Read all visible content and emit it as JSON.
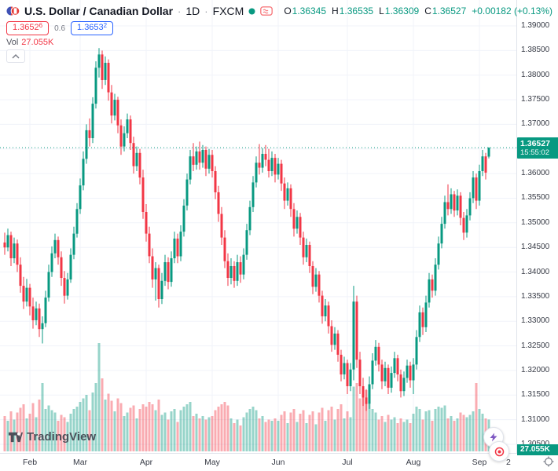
{
  "header": {
    "title": "U.S. Dollar / Canadian Dollar",
    "sep": "·",
    "timeframe": "1D",
    "exchange": "FXCM",
    "ohlc": {
      "o_label": "O",
      "o_value": "1.36345",
      "h_label": "H",
      "h_value": "1.36535",
      "l_label": "L",
      "l_value": "1.36309",
      "c_label": "C",
      "c_value": "1.36527",
      "change": "+0.00182 (+0.13%)"
    },
    "bid_main": "1.3652",
    "bid_sup": "6",
    "spread": "0.6",
    "ask_main": "1.3653",
    "ask_sup": "2",
    "vol_label": "Vol",
    "vol_value": "27.055K"
  },
  "price_scale": {
    "labels": [
      "1.39000",
      "1.38500",
      "1.38000",
      "1.37500",
      "1.37000",
      "1.36500",
      "1.36000",
      "1.35500",
      "1.35000",
      "1.34500",
      "1.34000",
      "1.33500",
      "1.33000",
      "1.32500",
      "1.32000",
      "1.31500",
      "1.31000",
      "1.30500"
    ],
    "current_price_label": "1.36527",
    "countdown": "15:55:02",
    "volume_label": "27.055K"
  },
  "time_scale": {
    "partial_label": "2"
  },
  "logo": {
    "text": "TradingView"
  },
  "colors": {
    "up": "#089981",
    "down": "#f23645",
    "accent_blue": "#2962ff",
    "grid": "#f0f3fa",
    "border": "#e0e3eb",
    "axis_text": "#363a45",
    "boost_purple": "#7e57c2"
  },
  "chart_data": {
    "type": "candlestick",
    "title": "U.S. Dollar / Canadian Dollar · 1D · FXCM",
    "ylabel": "",
    "xlabel": "",
    "ylim": [
      1.305,
      1.39
    ],
    "grid_step": 0.005,
    "current_price": 1.36527,
    "current_volume_k": 27.055,
    "month_ticks": [
      {
        "label": "Feb",
        "index": 8
      },
      {
        "label": "Mar",
        "index": 24
      },
      {
        "label": "Apr",
        "index": 45
      },
      {
        "label": "May",
        "index": 66
      },
      {
        "label": "Jun",
        "index": 87
      },
      {
        "label": "Jul",
        "index": 109
      },
      {
        "label": "Aug",
        "index": 130
      },
      {
        "label": "Sep",
        "index": 151
      }
    ],
    "candles": [
      [
        1.346,
        1.348,
        1.3435,
        1.345,
        30
      ],
      [
        1.345,
        1.3488,
        1.3442,
        1.3475,
        26
      ],
      [
        1.3475,
        1.3482,
        1.3412,
        1.3428,
        34
      ],
      [
        1.3428,
        1.347,
        1.3418,
        1.3458,
        27
      ],
      [
        1.3458,
        1.3466,
        1.34,
        1.3415,
        33
      ],
      [
        1.3415,
        1.343,
        1.3358,
        1.3372,
        37
      ],
      [
        1.3372,
        1.339,
        1.3325,
        1.334,
        40
      ],
      [
        1.334,
        1.3386,
        1.333,
        1.3368,
        28
      ],
      [
        1.3368,
        1.3376,
        1.3312,
        1.333,
        32
      ],
      [
        1.333,
        1.3348,
        1.3285,
        1.3302,
        41
      ],
      [
        1.3302,
        1.334,
        1.3292,
        1.3326,
        29
      ],
      [
        1.3326,
        1.3336,
        1.3268,
        1.3284,
        44
      ],
      [
        1.3284,
        1.331,
        1.3255,
        1.3296,
        58
      ],
      [
        1.3296,
        1.3362,
        1.3288,
        1.3348,
        36
      ],
      [
        1.3348,
        1.3415,
        1.334,
        1.34,
        39
      ],
      [
        1.34,
        1.3452,
        1.339,
        1.3438,
        35
      ],
      [
        1.3438,
        1.3478,
        1.3428,
        1.3465,
        33
      ],
      [
        1.3465,
        1.3472,
        1.3415,
        1.343,
        26
      ],
      [
        1.343,
        1.3442,
        1.3372,
        1.3388,
        31
      ],
      [
        1.3388,
        1.3402,
        1.3336,
        1.3352,
        29
      ],
      [
        1.3352,
        1.3398,
        1.3344,
        1.3385,
        25
      ],
      [
        1.3385,
        1.3448,
        1.3378,
        1.3435,
        32
      ],
      [
        1.3435,
        1.3492,
        1.3426,
        1.3478,
        36
      ],
      [
        1.3478,
        1.354,
        1.347,
        1.3528,
        38
      ],
      [
        1.3528,
        1.359,
        1.3518,
        1.3576,
        42
      ],
      [
        1.3576,
        1.3645,
        1.3566,
        1.363,
        45
      ],
      [
        1.363,
        1.37,
        1.362,
        1.3688,
        48
      ],
      [
        1.3688,
        1.3712,
        1.3655,
        1.3672,
        35
      ],
      [
        1.3672,
        1.3755,
        1.3662,
        1.3742,
        50
      ],
      [
        1.3742,
        1.3828,
        1.3732,
        1.3815,
        58
      ],
      [
        1.3815,
        1.3855,
        1.3795,
        1.3842,
        92
      ],
      [
        1.3842,
        1.385,
        1.3772,
        1.379,
        62
      ],
      [
        1.379,
        1.3838,
        1.378,
        1.3825,
        44
      ],
      [
        1.3825,
        1.3832,
        1.3748,
        1.3765,
        49
      ],
      [
        1.3765,
        1.378,
        1.3702,
        1.3718,
        43
      ],
      [
        1.3718,
        1.3762,
        1.3708,
        1.375,
        34
      ],
      [
        1.375,
        1.3756,
        1.3682,
        1.3698,
        45
      ],
      [
        1.3698,
        1.371,
        1.3638,
        1.3655,
        41
      ],
      [
        1.3655,
        1.3696,
        1.3645,
        1.3682,
        30
      ],
      [
        1.3682,
        1.3722,
        1.3672,
        1.371,
        33
      ],
      [
        1.371,
        1.3718,
        1.3648,
        1.3662,
        37
      ],
      [
        1.3662,
        1.3675,
        1.36,
        1.3615,
        39
      ],
      [
        1.3615,
        1.3655,
        1.3605,
        1.3642,
        28
      ],
      [
        1.3642,
        1.365,
        1.3578,
        1.3592,
        36
      ],
      [
        1.3592,
        1.3608,
        1.3508,
        1.3522,
        40
      ],
      [
        1.3522,
        1.3538,
        1.3462,
        1.3478,
        38
      ],
      [
        1.3478,
        1.3492,
        1.3418,
        1.3432,
        42
      ],
      [
        1.3432,
        1.3448,
        1.3368,
        1.3385,
        40
      ],
      [
        1.3385,
        1.342,
        1.3342,
        1.3408,
        35
      ],
      [
        1.3408,
        1.3415,
        1.3328,
        1.3345,
        44
      ],
      [
        1.3345,
        1.3398,
        1.3335,
        1.3382,
        31
      ],
      [
        1.3382,
        1.3435,
        1.3372,
        1.342,
        33
      ],
      [
        1.342,
        1.343,
        1.3365,
        1.338,
        27
      ],
      [
        1.338,
        1.3442,
        1.337,
        1.3428,
        34
      ],
      [
        1.3428,
        1.3482,
        1.3418,
        1.3468,
        36
      ],
      [
        1.3468,
        1.3478,
        1.3418,
        1.3432,
        25
      ],
      [
        1.3432,
        1.3495,
        1.3422,
        1.3482,
        35
      ],
      [
        1.3482,
        1.3548,
        1.3472,
        1.3535,
        38
      ],
      [
        1.3535,
        1.36,
        1.3525,
        1.3588,
        40
      ],
      [
        1.3588,
        1.3648,
        1.3578,
        1.3635,
        42
      ],
      [
        1.3635,
        1.3662,
        1.3605,
        1.3618,
        30
      ],
      [
        1.3618,
        1.3655,
        1.3608,
        1.3645,
        32
      ],
      [
        1.3645,
        1.3665,
        1.3608,
        1.3622,
        28
      ],
      [
        1.3622,
        1.3658,
        1.3612,
        1.3648,
        30
      ],
      [
        1.3648,
        1.3655,
        1.3595,
        1.361,
        27
      ],
      [
        1.361,
        1.365,
        1.36,
        1.3638,
        29
      ],
      [
        1.3638,
        1.3648,
        1.3592,
        1.3605,
        30
      ],
      [
        1.3605,
        1.3615,
        1.3548,
        1.3562,
        35
      ],
      [
        1.3562,
        1.3575,
        1.3502,
        1.3518,
        38
      ],
      [
        1.3518,
        1.3532,
        1.3455,
        1.347,
        40
      ],
      [
        1.347,
        1.3485,
        1.3408,
        1.3422,
        42
      ],
      [
        1.3422,
        1.3438,
        1.3372,
        1.3388,
        39
      ],
      [
        1.3388,
        1.3428,
        1.3375,
        1.3412,
        28
      ],
      [
        1.3412,
        1.3422,
        1.3368,
        1.3382,
        24
      ],
      [
        1.3382,
        1.3435,
        1.3372,
        1.342,
        27
      ],
      [
        1.342,
        1.3432,
        1.3378,
        1.3395,
        22
      ],
      [
        1.3395,
        1.3448,
        1.3385,
        1.3435,
        29
      ],
      [
        1.3435,
        1.3498,
        1.3425,
        1.3485,
        33
      ],
      [
        1.3485,
        1.3545,
        1.3475,
        1.3532,
        36
      ],
      [
        1.3532,
        1.3595,
        1.3522,
        1.3582,
        38
      ],
      [
        1.3582,
        1.3635,
        1.3572,
        1.3622,
        35
      ],
      [
        1.3622,
        1.366,
        1.3598,
        1.3612,
        28
      ],
      [
        1.3612,
        1.3652,
        1.3602,
        1.364,
        30
      ],
      [
        1.364,
        1.3658,
        1.3615,
        1.3628,
        25
      ],
      [
        1.3628,
        1.365,
        1.3592,
        1.3605,
        27
      ],
      [
        1.3605,
        1.3645,
        1.3595,
        1.3632,
        26
      ],
      [
        1.3632,
        1.364,
        1.3582,
        1.3598,
        28
      ],
      [
        1.3598,
        1.3632,
        1.3588,
        1.362,
        26
      ],
      [
        1.362,
        1.3628,
        1.3565,
        1.358,
        31
      ],
      [
        1.358,
        1.3592,
        1.3528,
        1.3545,
        34
      ],
      [
        1.3545,
        1.3582,
        1.3535,
        1.357,
        24
      ],
      [
        1.357,
        1.3578,
        1.3512,
        1.3528,
        33
      ],
      [
        1.3528,
        1.354,
        1.3472,
        1.3488,
        36
      ],
      [
        1.3488,
        1.3525,
        1.3478,
        1.3512,
        25
      ],
      [
        1.3512,
        1.352,
        1.3455,
        1.347,
        32
      ],
      [
        1.347,
        1.3482,
        1.3415,
        1.343,
        35
      ],
      [
        1.343,
        1.3468,
        1.342,
        1.3455,
        24
      ],
      [
        1.3455,
        1.3462,
        1.3398,
        1.3412,
        31
      ],
      [
        1.3412,
        1.3422,
        1.3355,
        1.337,
        34
      ],
      [
        1.337,
        1.3408,
        1.336,
        1.3395,
        23
      ],
      [
        1.3395,
        1.3402,
        1.3338,
        1.3352,
        33
      ],
      [
        1.3352,
        1.3362,
        1.3295,
        1.331,
        37
      ],
      [
        1.331,
        1.3345,
        1.33,
        1.3332,
        26
      ],
      [
        1.3332,
        1.334,
        1.3275,
        1.329,
        35
      ],
      [
        1.329,
        1.3302,
        1.3238,
        1.3252,
        38
      ],
      [
        1.3252,
        1.3288,
        1.3242,
        1.3275,
        27
      ],
      [
        1.3275,
        1.3282,
        1.3218,
        1.3232,
        36
      ],
      [
        1.3232,
        1.3242,
        1.3178,
        1.3192,
        40
      ],
      [
        1.3192,
        1.3228,
        1.3182,
        1.3215,
        28
      ],
      [
        1.3215,
        1.3222,
        1.3152,
        1.3168,
        34
      ],
      [
        1.3168,
        1.3215,
        1.3158,
        1.3202,
        29
      ],
      [
        1.3202,
        1.3372,
        1.318,
        1.334,
        55
      ],
      [
        1.334,
        1.3352,
        1.3205,
        1.3222,
        58
      ],
      [
        1.3222,
        1.3238,
        1.3152,
        1.3168,
        45
      ],
      [
        1.3168,
        1.3185,
        1.3128,
        1.3145,
        49
      ],
      [
        1.3145,
        1.3162,
        1.3118,
        1.3132,
        52
      ],
      [
        1.3132,
        1.3188,
        1.3122,
        1.3172,
        40
      ],
      [
        1.3172,
        1.3235,
        1.3162,
        1.322,
        36
      ],
      [
        1.322,
        1.3262,
        1.321,
        1.3248,
        33
      ],
      [
        1.3248,
        1.3256,
        1.3198,
        1.3212,
        27
      ],
      [
        1.3212,
        1.3222,
        1.3162,
        1.3178,
        30
      ],
      [
        1.3178,
        1.3218,
        1.3168,
        1.3205,
        25
      ],
      [
        1.3205,
        1.3212,
        1.3152,
        1.3165,
        31
      ],
      [
        1.3165,
        1.3208,
        1.3155,
        1.3195,
        27
      ],
      [
        1.3195,
        1.3238,
        1.3185,
        1.3225,
        29
      ],
      [
        1.3225,
        1.3232,
        1.3178,
        1.3192,
        24
      ],
      [
        1.3192,
        1.3202,
        1.3145,
        1.3158,
        28
      ],
      [
        1.3158,
        1.3198,
        1.3148,
        1.3185,
        25
      ],
      [
        1.3185,
        1.3222,
        1.3175,
        1.321,
        27
      ],
      [
        1.321,
        1.3218,
        1.3165,
        1.318,
        24
      ],
      [
        1.318,
        1.3225,
        1.3152,
        1.3212,
        32
      ],
      [
        1.3212,
        1.3282,
        1.3202,
        1.3268,
        38
      ],
      [
        1.3268,
        1.3332,
        1.3258,
        1.3318,
        36
      ],
      [
        1.3318,
        1.3328,
        1.3272,
        1.3288,
        27
      ],
      [
        1.3288,
        1.3352,
        1.3278,
        1.3338,
        34
      ],
      [
        1.3338,
        1.3398,
        1.3328,
        1.3385,
        35
      ],
      [
        1.3385,
        1.3395,
        1.3348,
        1.3362,
        26
      ],
      [
        1.3362,
        1.3428,
        1.3352,
        1.3415,
        36
      ],
      [
        1.3415,
        1.3472,
        1.3405,
        1.3458,
        38
      ],
      [
        1.3458,
        1.3512,
        1.3448,
        1.3498,
        37
      ],
      [
        1.3498,
        1.3555,
        1.3488,
        1.3542,
        39
      ],
      [
        1.3542,
        1.3578,
        1.3515,
        1.3528,
        28
      ],
      [
        1.3528,
        1.357,
        1.3518,
        1.3558,
        30
      ],
      [
        1.3558,
        1.3565,
        1.3512,
        1.3525,
        26
      ],
      [
        1.3525,
        1.3568,
        1.3515,
        1.3555,
        28
      ],
      [
        1.3555,
        1.3562,
        1.3495,
        1.351,
        33
      ],
      [
        1.351,
        1.3522,
        1.3465,
        1.348,
        31
      ],
      [
        1.348,
        1.3528,
        1.347,
        1.3515,
        29
      ],
      [
        1.3515,
        1.3562,
        1.3505,
        1.355,
        31
      ],
      [
        1.355,
        1.3605,
        1.354,
        1.3592,
        34
      ],
      [
        1.3592,
        1.36,
        1.3528,
        1.3545,
        58
      ],
      [
        1.3545,
        1.3618,
        1.3535,
        1.3605,
        36
      ],
      [
        1.3605,
        1.3648,
        1.3595,
        1.3635,
        32
      ],
      [
        1.3635,
        1.3642,
        1.3588,
        1.3602,
        28
      ],
      [
        1.36345,
        1.36535,
        1.36309,
        1.36527,
        27.055
      ]
    ]
  }
}
